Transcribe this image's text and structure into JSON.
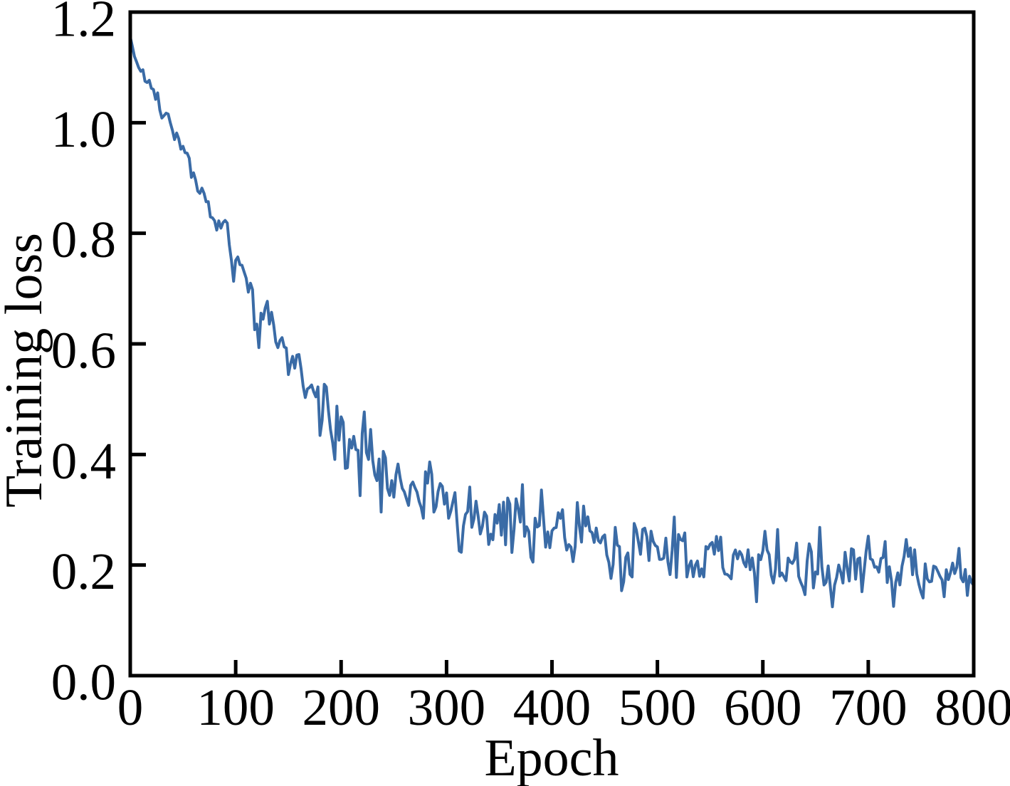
{
  "chart_data": {
    "type": "line",
    "title": "",
    "xlabel": "Epoch",
    "ylabel": "Training loss",
    "xlim": [
      0,
      800
    ],
    "ylim": [
      0.0,
      1.2
    ],
    "grid": false,
    "legend": "none",
    "background": "#ffffff",
    "axis_color": "#000000",
    "tick_style": "inward, bottom and left only",
    "frame": "full box",
    "xticks": {
      "values": [
        0,
        100,
        200,
        300,
        400,
        500,
        600,
        700,
        800
      ],
      "labels": [
        "0",
        "100",
        "200",
        "300",
        "400",
        "500",
        "600",
        "700",
        "800"
      ]
    },
    "yticks": {
      "values": [
        0.0,
        0.2,
        0.4,
        0.6,
        0.8,
        1.0,
        1.2
      ],
      "labels": [
        "0.0",
        "0.2",
        "0.4",
        "0.6",
        "0.8",
        "1.0",
        "1.2"
      ]
    },
    "series": [
      {
        "name": "training loss",
        "color": "#3a6ba6",
        "line_width": 4,
        "description": "noisy per-epoch training loss, exponential-like decay",
        "anchor_points_epoch_loss": [
          [
            0,
            1.155
          ],
          [
            5,
            1.12
          ],
          [
            10,
            1.1
          ],
          [
            15,
            1.082
          ],
          [
            20,
            1.06
          ],
          [
            25,
            1.045
          ],
          [
            30,
            1.02
          ],
          [
            35,
            1.0
          ],
          [
            40,
            0.985
          ],
          [
            45,
            0.97
          ],
          [
            50,
            0.955
          ],
          [
            60,
            0.925
          ],
          [
            70,
            0.885
          ],
          [
            80,
            0.845
          ],
          [
            90,
            0.8
          ],
          [
            100,
            0.745
          ],
          [
            110,
            0.71
          ],
          [
            120,
            0.675
          ],
          [
            130,
            0.655
          ],
          [
            140,
            0.625
          ],
          [
            150,
            0.6
          ],
          [
            160,
            0.565
          ],
          [
            170,
            0.532
          ],
          [
            180,
            0.505
          ],
          [
            190,
            0.478
          ],
          [
            200,
            0.452
          ],
          [
            215,
            0.42
          ],
          [
            230,
            0.39
          ],
          [
            245,
            0.37
          ],
          [
            260,
            0.35
          ],
          [
            275,
            0.335
          ],
          [
            290,
            0.322
          ],
          [
            305,
            0.312
          ],
          [
            320,
            0.3
          ],
          [
            340,
            0.29
          ],
          [
            360,
            0.281
          ],
          [
            380,
            0.27
          ],
          [
            400,
            0.262
          ],
          [
            420,
            0.255
          ],
          [
            440,
            0.25
          ],
          [
            460,
            0.251
          ],
          [
            480,
            0.24
          ],
          [
            500,
            0.228
          ],
          [
            520,
            0.222
          ],
          [
            540,
            0.216
          ],
          [
            560,
            0.212
          ],
          [
            580,
            0.209
          ],
          [
            600,
            0.205
          ],
          [
            620,
            0.202
          ],
          [
            640,
            0.2
          ],
          [
            660,
            0.197
          ],
          [
            680,
            0.193
          ],
          [
            700,
            0.191
          ],
          [
            720,
            0.189
          ],
          [
            740,
            0.186
          ],
          [
            760,
            0.184
          ],
          [
            780,
            0.182
          ],
          [
            800,
            0.179
          ]
        ],
        "noise": {
          "sigma_start": 0.005,
          "sigma_peak": 0.031,
          "peak_epoch": 190,
          "sigma_end": 0.024,
          "end_ramp_from_epoch": 320,
          "seed": 1337,
          "step_epochs": 2
        }
      }
    ]
  }
}
